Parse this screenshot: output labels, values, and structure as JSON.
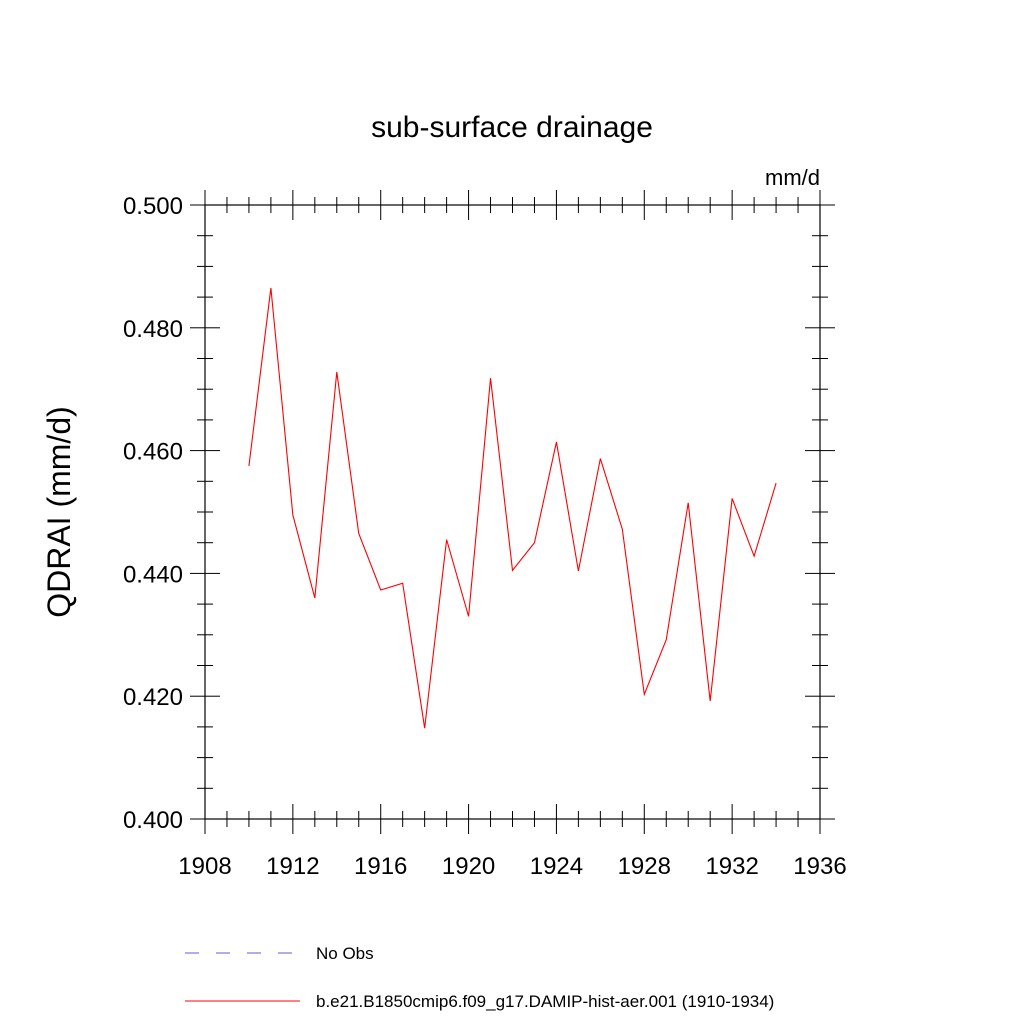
{
  "chart_data": {
    "type": "line",
    "title": "sub-surface drainage",
    "units": "mm/d",
    "ylabel": "QDRAI  (mm/d)",
    "xlabel": "",
    "xlim": [
      1908,
      1936
    ],
    "ylim": [
      0.4,
      0.5
    ],
    "x_ticks": [
      "1908",
      "1912",
      "1916",
      "1920",
      "1924",
      "1928",
      "1932",
      "1936"
    ],
    "y_ticks": [
      "0.400",
      "0.420",
      "0.440",
      "0.460",
      "0.480",
      "0.500"
    ],
    "x_minor_step": 1,
    "y_minor_step": 0.005,
    "x": [
      1910,
      1911,
      1912,
      1913,
      1914,
      1915,
      1916,
      1917,
      1918,
      1919,
      1920,
      1921,
      1922,
      1923,
      1924,
      1925,
      1926,
      1927,
      1928,
      1929,
      1930,
      1931,
      1932,
      1933,
      1934
    ],
    "series": [
      {
        "name": "b.e21.B1850cmip6.f09_g17.DAMIP-hist-aer.001 (1910-1934)",
        "color": "#ff0000",
        "values": [
          0.4575,
          0.4865,
          0.4495,
          0.436,
          0.4728,
          0.4465,
          0.4373,
          0.4384,
          0.4148,
          0.4455,
          0.433,
          0.4718,
          0.4405,
          0.445,
          0.4614,
          0.4404,
          0.4587,
          0.4472,
          0.4203,
          0.4292,
          0.4515,
          0.4192,
          0.4522,
          0.4428,
          0.4547
        ]
      }
    ],
    "legend": [
      {
        "label": "No Obs",
        "color": "#6a5acd",
        "style": "dashed"
      },
      {
        "label": "b.e21.B1850cmip6.f09_g17.DAMIP-hist-aer.001 (1910-1934)",
        "color": "#ff0000",
        "style": "solid"
      }
    ],
    "legend_position": "bottom-left",
    "grid": false
  }
}
